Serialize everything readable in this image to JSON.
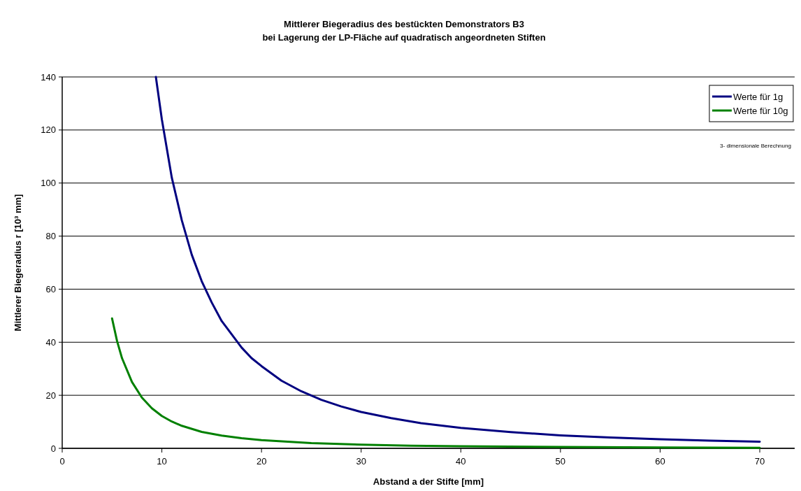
{
  "chart_data": {
    "type": "line",
    "title": "Mittlerer Biegeradius des bestückten Demonstrators B3\nbei Lagerung der LP-Fläche auf quadratisch angeordneten Stiften",
    "xlabel": "Abstand a der Stifte [mm]",
    "ylabel": "Mittlerer Biegeradius r  [10³ mm]",
    "annotations": [
      "3- dimensionale Berechnung"
    ],
    "series": [
      {
        "name": "Werte für 1g",
        "color": "#000080",
        "x": [
          9.4,
          10,
          11,
          12,
          13,
          14,
          15,
          16,
          17,
          18,
          19,
          20,
          22,
          24,
          26,
          28,
          30,
          33,
          36,
          40,
          45,
          50,
          55,
          60,
          65,
          70
        ],
        "values": [
          140,
          124,
          102,
          86,
          73,
          63,
          55,
          48,
          43,
          38,
          34,
          31,
          25.5,
          21.5,
          18.3,
          15.8,
          13.7,
          11.4,
          9.5,
          7.7,
          6.1,
          4.9,
          4.1,
          3.4,
          2.9,
          2.5
        ]
      },
      {
        "name": "Werte für 10g",
        "color": "#008000",
        "x": [
          5,
          5.5,
          6,
          7,
          8,
          9,
          10,
          11,
          12,
          14,
          16,
          18,
          20,
          25,
          30,
          35,
          40,
          50,
          60,
          70
        ],
        "values": [
          49,
          40.5,
          34,
          25,
          19.1,
          15.1,
          12.2,
          10.1,
          8.5,
          6.2,
          4.8,
          3.8,
          3.1,
          2,
          1.4,
          1,
          0.8,
          0.5,
          0.3,
          0.2
        ]
      }
    ],
    "xlim": [
      0,
      73.5
    ],
    "xticks": [
      0,
      10,
      20,
      30,
      40,
      50,
      60,
      70
    ],
    "ylim": [
      0,
      140
    ],
    "yticks": [
      0,
      20,
      40,
      60,
      80,
      100,
      120,
      140
    ],
    "grid": "y",
    "legend": "top right",
    "line_style": "solid",
    "marker": "none"
  }
}
